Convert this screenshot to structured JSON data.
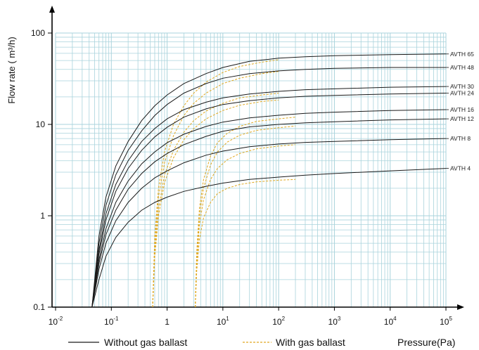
{
  "chart_data": {
    "type": "line",
    "xscale": "log",
    "yscale": "log",
    "xlim": [
      0.01,
      100000
    ],
    "ylim": [
      0.1,
      100
    ],
    "x_ticks": [
      {
        "value": 0.01,
        "base": "10",
        "exp": "-2"
      },
      {
        "value": 0.1,
        "base": "10",
        "exp": "-1"
      },
      {
        "value": 1,
        "base": "1",
        "exp": ""
      },
      {
        "value": 10,
        "base": "10",
        "exp": "1"
      },
      {
        "value": 100,
        "base": "10",
        "exp": "2"
      },
      {
        "value": 1000,
        "base": "10",
        "exp": "3"
      },
      {
        "value": 10000,
        "base": "10",
        "exp": "4"
      },
      {
        "value": 100000,
        "base": "10",
        "exp": "5"
      }
    ],
    "y_ticks": [
      {
        "value": 0.1,
        "label": "0.1"
      },
      {
        "value": 1,
        "label": "1"
      },
      {
        "value": 10,
        "label": "10"
      },
      {
        "value": 100,
        "label": "100"
      }
    ],
    "xlabel": "Pressure(Pa)",
    "ylabel": "Flow rate ( m³/h)",
    "grid": true,
    "colors": {
      "grid": "#a9d3dc",
      "solid": "#1a1a1a",
      "dashed": "#e0a820",
      "axis": "#000000"
    },
    "legend": [
      {
        "label": "Without gas ballast",
        "style": "solid"
      },
      {
        "label": "With gas ballast",
        "style": "dashed"
      }
    ],
    "series": [
      {
        "name": "AVTH 65",
        "label_y": 59,
        "solid": [
          [
            0.045,
            0.1
          ],
          [
            0.06,
            0.6
          ],
          [
            0.08,
            1.6
          ],
          [
            0.12,
            3.5
          ],
          [
            0.2,
            6.5
          ],
          [
            0.35,
            11
          ],
          [
            0.6,
            16
          ],
          [
            1,
            21
          ],
          [
            2,
            28
          ],
          [
            5,
            36
          ],
          [
            10,
            42
          ],
          [
            30,
            49
          ],
          [
            100,
            53
          ],
          [
            300,
            55
          ],
          [
            1000,
            56.5
          ],
          [
            10000,
            58
          ],
          [
            100000,
            59
          ]
        ],
        "dashed": [
          [
            0.55,
            0.1
          ],
          [
            0.6,
            0.6
          ],
          [
            0.7,
            2
          ],
          [
            0.9,
            5
          ],
          [
            1.3,
            10
          ],
          [
            2,
            16
          ],
          [
            3,
            22
          ],
          [
            5,
            29
          ],
          [
            10,
            37
          ],
          [
            20,
            43
          ],
          [
            50,
            48
          ],
          [
            100,
            51
          ]
        ]
      },
      {
        "name": "AVTH 48",
        "label_y": 42,
        "solid": [
          [
            0.045,
            0.1
          ],
          [
            0.06,
            0.5
          ],
          [
            0.08,
            1.3
          ],
          [
            0.12,
            2.8
          ],
          [
            0.2,
            5.2
          ],
          [
            0.35,
            8.5
          ],
          [
            0.6,
            12.5
          ],
          [
            1,
            16.5
          ],
          [
            2,
            22
          ],
          [
            5,
            28
          ],
          [
            10,
            32
          ],
          [
            30,
            36
          ],
          [
            100,
            38.5
          ],
          [
            300,
            40
          ],
          [
            1000,
            41
          ],
          [
            10000,
            42
          ],
          [
            100000,
            42
          ]
        ],
        "dashed": [
          [
            0.55,
            0.1
          ],
          [
            0.6,
            0.5
          ],
          [
            0.7,
            1.6
          ],
          [
            0.9,
            3.8
          ],
          [
            1.3,
            7.5
          ],
          [
            2,
            12.5
          ],
          [
            3,
            17
          ],
          [
            5,
            22
          ],
          [
            10,
            28
          ],
          [
            20,
            32
          ],
          [
            50,
            36
          ],
          [
            100,
            38
          ]
        ]
      },
      {
        "name": "AVTH 30",
        "label_y": 26,
        "solid": [
          [
            0.045,
            0.1
          ],
          [
            0.06,
            0.42
          ],
          [
            0.08,
            1.05
          ],
          [
            0.12,
            2.2
          ],
          [
            0.2,
            4
          ],
          [
            0.35,
            6.5
          ],
          [
            0.6,
            9
          ],
          [
            1,
            11.5
          ],
          [
            2,
            14.5
          ],
          [
            5,
            17.5
          ],
          [
            10,
            19.5
          ],
          [
            30,
            21.5
          ],
          [
            100,
            23
          ],
          [
            300,
            24
          ],
          [
            1000,
            24.5
          ],
          [
            10000,
            25.5
          ],
          [
            100000,
            26
          ]
        ],
        "dashed": [
          [
            0.55,
            0.1
          ],
          [
            0.6,
            0.4
          ],
          [
            0.7,
            1.2
          ],
          [
            0.9,
            2.8
          ],
          [
            1.3,
            5.2
          ],
          [
            2,
            8.2
          ],
          [
            3,
            11
          ],
          [
            5,
            14
          ],
          [
            10,
            17
          ],
          [
            20,
            19.5
          ],
          [
            50,
            21
          ],
          [
            100,
            22
          ]
        ]
      },
      {
        "name": "AVTH 24",
        "label_y": 22,
        "solid": [
          [
            0.045,
            0.1
          ],
          [
            0.06,
            0.38
          ],
          [
            0.08,
            0.9
          ],
          [
            0.12,
            1.85
          ],
          [
            0.2,
            3.3
          ],
          [
            0.35,
            5.2
          ],
          [
            0.6,
            7.3
          ],
          [
            1,
            9.3
          ],
          [
            2,
            12
          ],
          [
            5,
            14.8
          ],
          [
            10,
            16.5
          ],
          [
            30,
            18.2
          ],
          [
            100,
            19.5
          ],
          [
            300,
            20.3
          ],
          [
            1000,
            20.8
          ],
          [
            10000,
            21.5
          ],
          [
            100000,
            22
          ]
        ],
        "dashed": [
          [
            0.55,
            0.1
          ],
          [
            0.6,
            0.35
          ],
          [
            0.7,
            1
          ],
          [
            0.9,
            2.3
          ],
          [
            1.3,
            4.3
          ],
          [
            2,
            6.8
          ],
          [
            3,
            9
          ],
          [
            5,
            11.5
          ],
          [
            10,
            14.2
          ],
          [
            20,
            16.2
          ],
          [
            50,
            17.8
          ],
          [
            100,
            18.5
          ]
        ]
      },
      {
        "name": "AVTH 16",
        "label_y": 14.5,
        "solid": [
          [
            0.045,
            0.1
          ],
          [
            0.06,
            0.33
          ],
          [
            0.08,
            0.72
          ],
          [
            0.12,
            1.4
          ],
          [
            0.2,
            2.4
          ],
          [
            0.35,
            3.7
          ],
          [
            0.6,
            5
          ],
          [
            1,
            6.3
          ],
          [
            2,
            7.8
          ],
          [
            5,
            9.5
          ],
          [
            10,
            10.6
          ],
          [
            30,
            11.8
          ],
          [
            100,
            12.6
          ],
          [
            300,
            13.2
          ],
          [
            1000,
            13.6
          ],
          [
            10000,
            14.2
          ],
          [
            100000,
            14.5
          ]
        ],
        "dashed": [
          [
            3.2,
            0.1
          ],
          [
            3.4,
            0.4
          ],
          [
            3.8,
            1.2
          ],
          [
            4.5,
            2.5
          ],
          [
            6,
            4.5
          ],
          [
            8,
            6.3
          ],
          [
            12,
            8
          ],
          [
            20,
            9.5
          ],
          [
            40,
            10.8
          ],
          [
            100,
            11.5
          ],
          [
            200,
            12
          ]
        ]
      },
      {
        "name": "AVTH 12",
        "label_y": 11.5,
        "solid": [
          [
            0.045,
            0.1
          ],
          [
            0.06,
            0.3
          ],
          [
            0.08,
            0.62
          ],
          [
            0.12,
            1.15
          ],
          [
            0.2,
            1.95
          ],
          [
            0.35,
            2.9
          ],
          [
            0.6,
            3.9
          ],
          [
            1,
            4.8
          ],
          [
            2,
            6
          ],
          [
            5,
            7.4
          ],
          [
            10,
            8.4
          ],
          [
            30,
            9.4
          ],
          [
            100,
            10
          ],
          [
            300,
            10.4
          ],
          [
            1000,
            10.7
          ],
          [
            10000,
            11.2
          ],
          [
            100000,
            11.5
          ]
        ],
        "dashed": [
          [
            3.2,
            0.1
          ],
          [
            3.4,
            0.35
          ],
          [
            3.8,
            1
          ],
          [
            4.5,
            2
          ],
          [
            6,
            3.6
          ],
          [
            8,
            5
          ],
          [
            12,
            6.4
          ],
          [
            20,
            7.6
          ],
          [
            40,
            8.6
          ],
          [
            100,
            9.2
          ],
          [
            200,
            9.6
          ]
        ]
      },
      {
        "name": "AVTH 8",
        "label_y": 7,
        "solid": [
          [
            0.045,
            0.1
          ],
          [
            0.06,
            0.26
          ],
          [
            0.08,
            0.5
          ],
          [
            0.12,
            0.88
          ],
          [
            0.2,
            1.4
          ],
          [
            0.35,
            2
          ],
          [
            0.6,
            2.6
          ],
          [
            1,
            3.1
          ],
          [
            2,
            3.8
          ],
          [
            5,
            4.6
          ],
          [
            10,
            5.1
          ],
          [
            30,
            5.7
          ],
          [
            100,
            6.1
          ],
          [
            300,
            6.35
          ],
          [
            1000,
            6.5
          ],
          [
            10000,
            6.8
          ],
          [
            100000,
            7
          ]
        ],
        "dashed": [
          [
            3.2,
            0.1
          ],
          [
            3.4,
            0.3
          ],
          [
            3.8,
            0.8
          ],
          [
            4.5,
            1.5
          ],
          [
            6,
            2.5
          ],
          [
            8,
            3.3
          ],
          [
            12,
            4.1
          ],
          [
            20,
            4.8
          ],
          [
            40,
            5.4
          ],
          [
            100,
            5.8
          ],
          [
            200,
            6
          ]
        ]
      },
      {
        "name": "AVTH 4",
        "label_y": 3.3,
        "solid": [
          [
            0.045,
            0.1
          ],
          [
            0.06,
            0.2
          ],
          [
            0.08,
            0.36
          ],
          [
            0.12,
            0.58
          ],
          [
            0.2,
            0.85
          ],
          [
            0.35,
            1.15
          ],
          [
            0.6,
            1.4
          ],
          [
            1,
            1.6
          ],
          [
            2,
            1.85
          ],
          [
            5,
            2.1
          ],
          [
            10,
            2.28
          ],
          [
            30,
            2.5
          ],
          [
            100,
            2.65
          ],
          [
            300,
            2.78
          ],
          [
            1000,
            2.9
          ],
          [
            10000,
            3.1
          ],
          [
            100000,
            3.3
          ]
        ],
        "dashed": [
          [
            3.2,
            0.1
          ],
          [
            3.4,
            0.25
          ],
          [
            3.8,
            0.55
          ],
          [
            4.5,
            0.95
          ],
          [
            6,
            1.4
          ],
          [
            8,
            1.75
          ],
          [
            12,
            2
          ],
          [
            20,
            2.2
          ],
          [
            40,
            2.35
          ],
          [
            100,
            2.45
          ],
          [
            200,
            2.5
          ]
        ]
      }
    ]
  }
}
